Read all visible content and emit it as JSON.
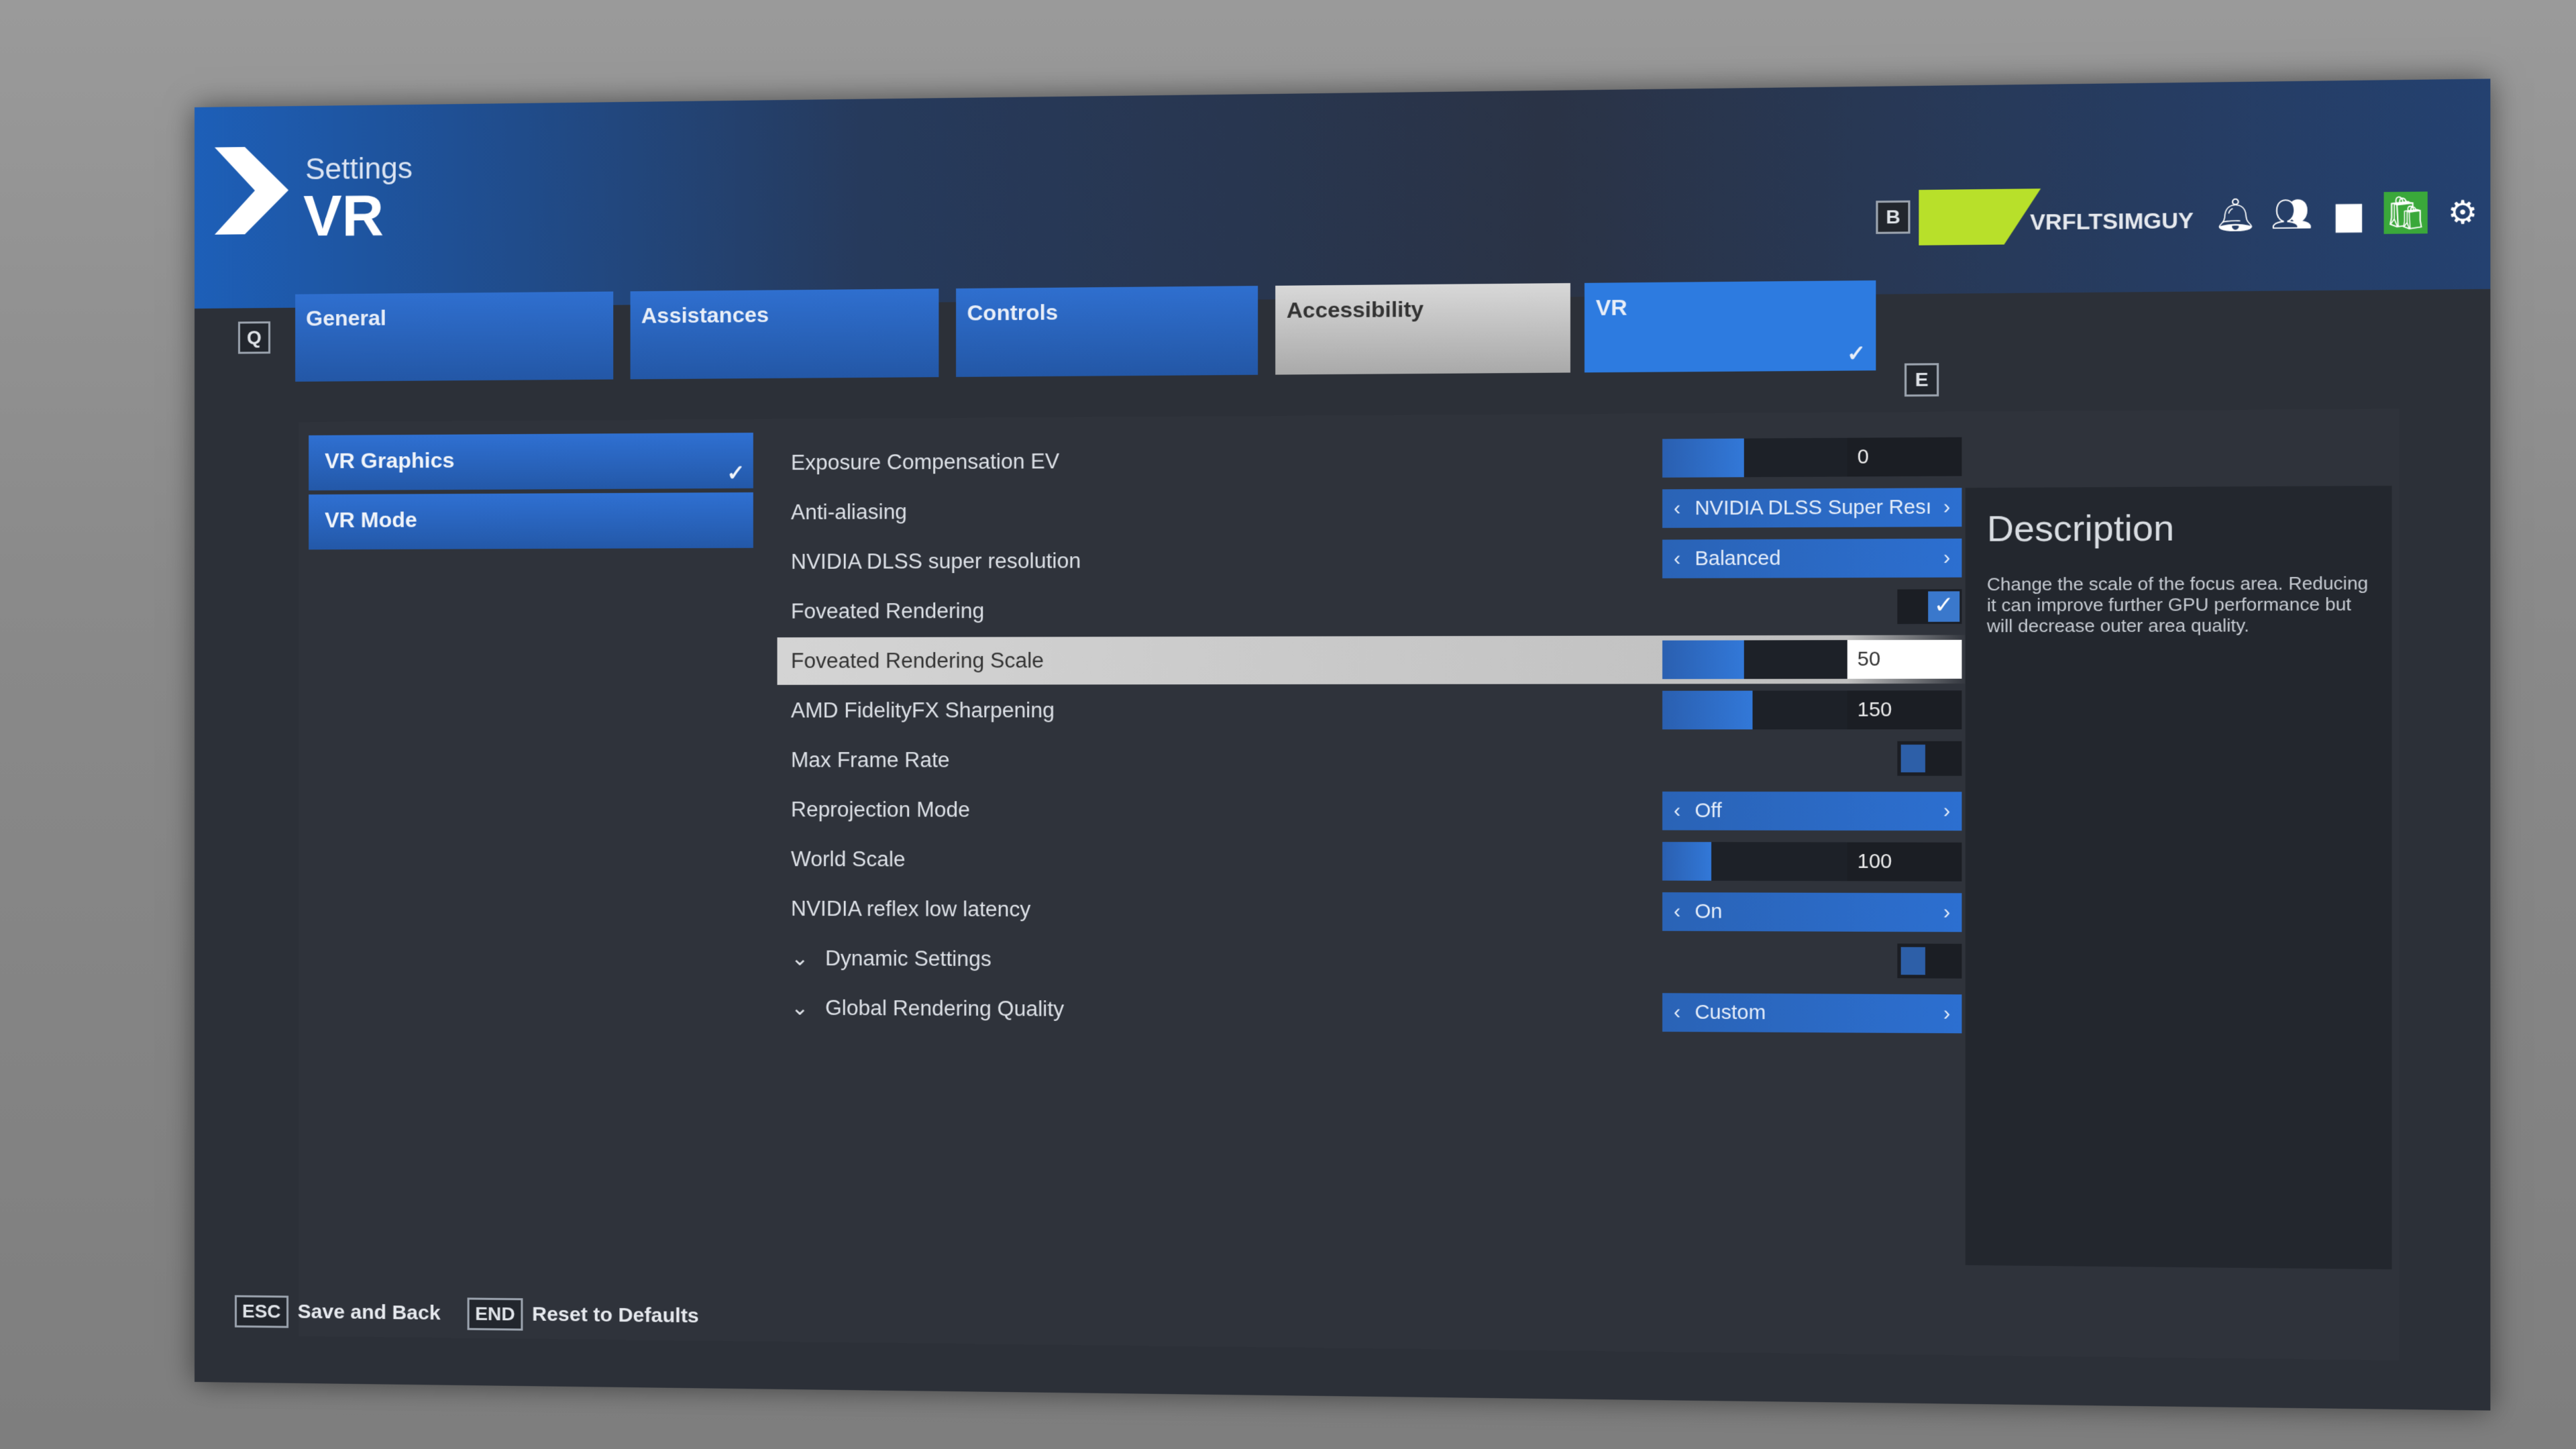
{
  "header": {
    "subtitle": "Settings",
    "title": "VR",
    "prev_tab_key": "Q",
    "next_tab_key": "E",
    "profile_key": "B",
    "username": "VRFLTSIMGUY"
  },
  "header_icons": [
    "bell-icon",
    "friends-icon",
    "chat-icon",
    "shop-icon",
    "gear-icon"
  ],
  "tabs": [
    {
      "label": "General"
    },
    {
      "label": "Assistances"
    },
    {
      "label": "Controls"
    },
    {
      "label": "Accessibility"
    },
    {
      "label": "VR",
      "selected": true
    }
  ],
  "sidebar": [
    {
      "label": "VR Graphics",
      "selected": true
    },
    {
      "label": "VR Mode"
    }
  ],
  "settings": [
    {
      "label": "Exposure Compensation EV",
      "type": "slider",
      "value": "0",
      "fraction": 0.5
    },
    {
      "label": "Anti-aliasing",
      "type": "select",
      "value": "NVIDIA DLSS Super Resı"
    },
    {
      "label": "NVIDIA DLSS super resolution",
      "type": "select",
      "value": "Balanced"
    },
    {
      "label": "Foveated Rendering",
      "type": "checkbox",
      "checked": true
    },
    {
      "label": "Foveated Rendering Scale",
      "type": "slider",
      "value": "50",
      "fraction": 0.5,
      "highlighted": true
    },
    {
      "label": "AMD FidelityFX Sharpening",
      "type": "slider",
      "value": "150",
      "fraction": 0.55
    },
    {
      "label": "Max Frame Rate",
      "type": "toggle",
      "on": false
    },
    {
      "label": "Reprojection Mode",
      "type": "select",
      "value": "Off"
    },
    {
      "label": "World Scale",
      "type": "slider",
      "value": "100",
      "fraction": 0.3
    },
    {
      "label": "NVIDIA reflex low latency",
      "type": "select",
      "value": "On"
    },
    {
      "label": "Dynamic Settings",
      "type": "toggle",
      "collapsible": true,
      "on": false
    },
    {
      "label": "Global Rendering Quality",
      "type": "select",
      "value": "Custom",
      "collapsible": true
    }
  ],
  "description": {
    "title": "Description",
    "text": "Change the scale of the focus area. Reducing it can improve further GPU performance but will decrease outer area quality."
  },
  "footer": {
    "save_key": "ESC",
    "save_label": "Save and Back",
    "reset_key": "END",
    "reset_label": "Reset to Defaults"
  },
  "colors": {
    "accent": "#2d72d2",
    "profile": "#b8e02a",
    "shop": "#3aa83a",
    "panel": "#2c3038"
  }
}
